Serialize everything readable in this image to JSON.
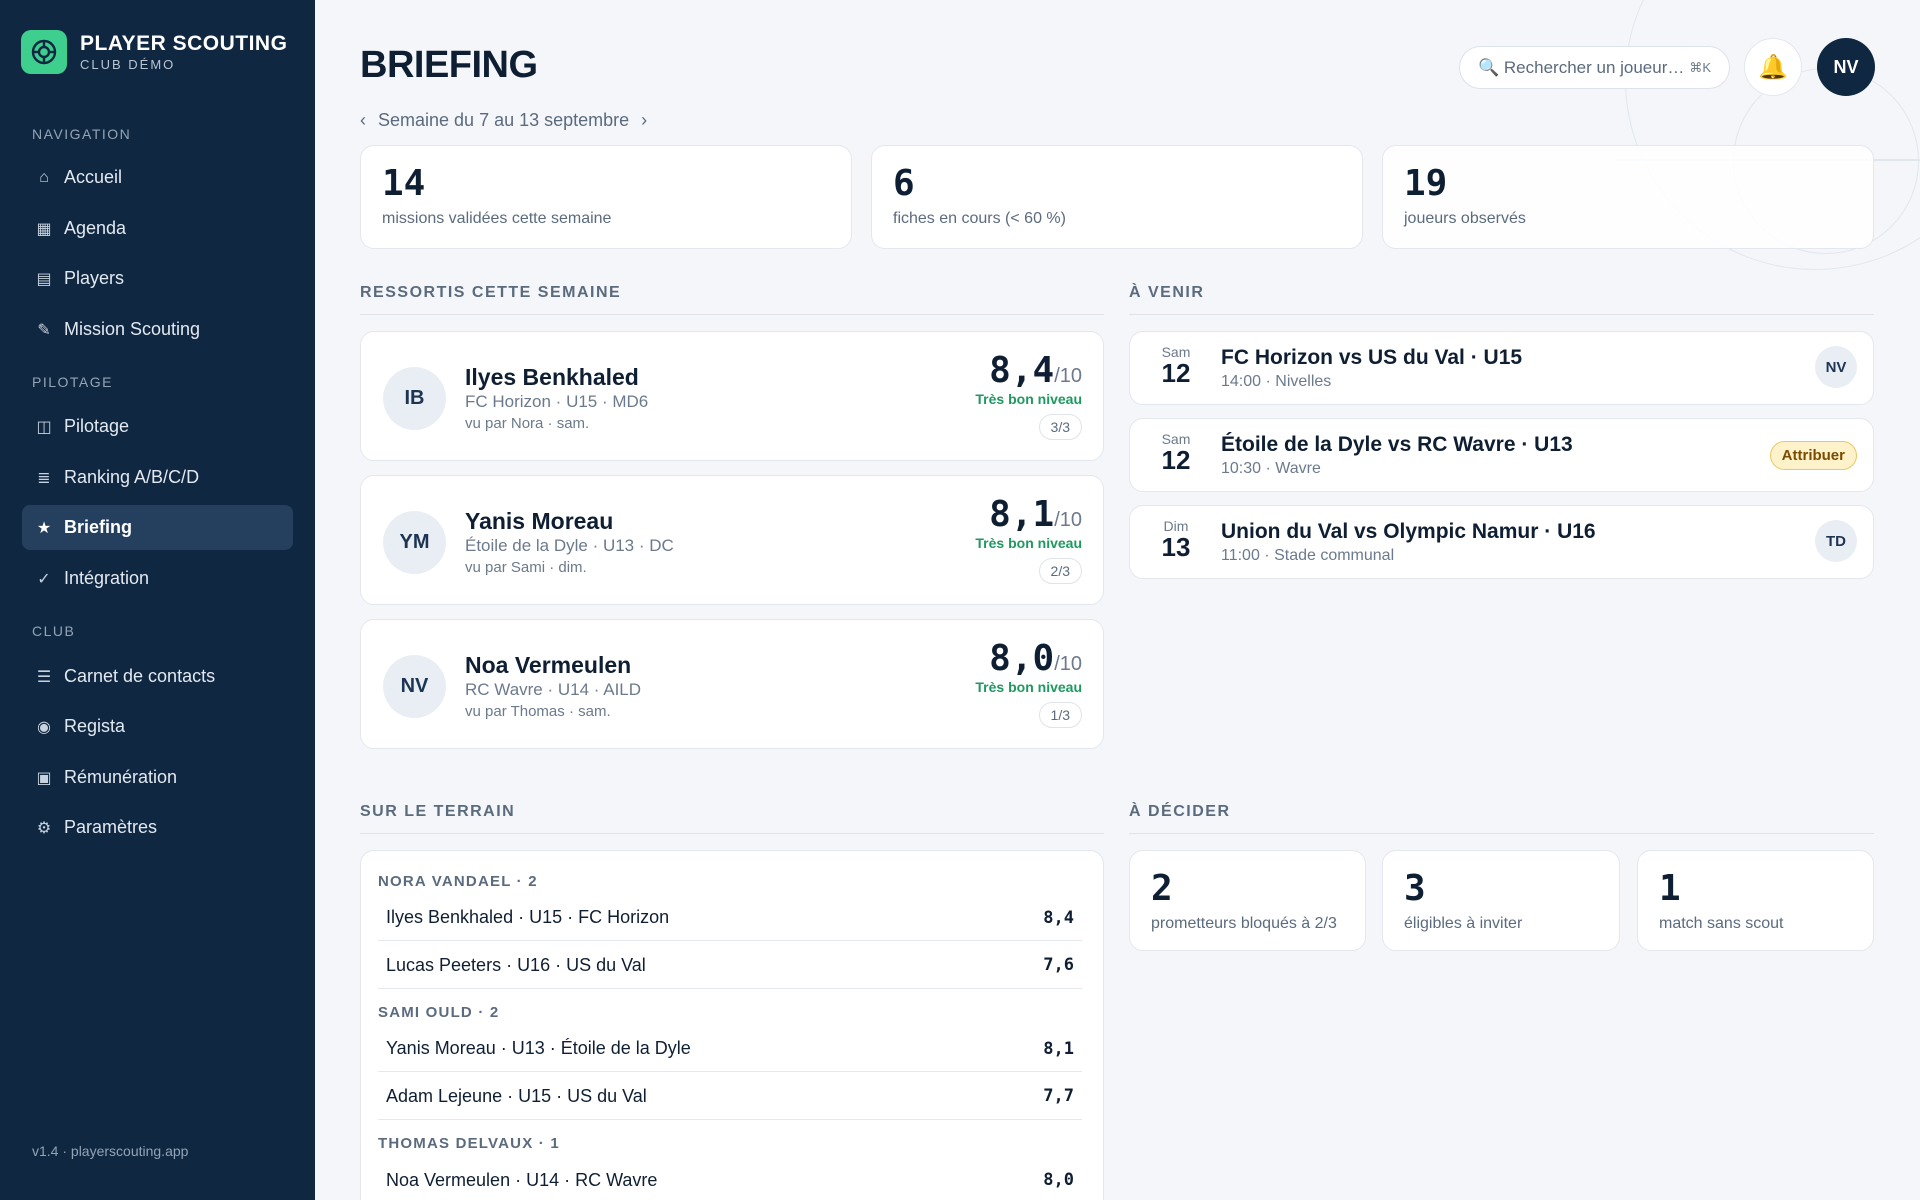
{
  "brand": {
    "title": "PLAYER SCOUTING",
    "subtitle": "CLUB DÉMO"
  },
  "sidebar": {
    "sections": {
      "navigation": "NAVIGATION",
      "pilotage": "PILOTAGE",
      "club": "CLUB"
    },
    "items": [
      {
        "label": "Accueil",
        "icon": "home-icon",
        "glyph": "⌂"
      },
      {
        "label": "Agenda",
        "icon": "calendar-icon",
        "glyph": "▦"
      },
      {
        "label": "Players",
        "icon": "players-icon",
        "glyph": "▤"
      },
      {
        "label": "Mission Scouting",
        "icon": "pencil-icon",
        "glyph": "✎"
      },
      {
        "label": "Pilotage",
        "icon": "dashboard-icon",
        "glyph": "◫"
      },
      {
        "label": "Ranking A/B/C/D",
        "icon": "ranking-icon",
        "glyph": "≣"
      },
      {
        "label": "Briefing",
        "icon": "star-icon",
        "glyph": "★"
      },
      {
        "label": "Intégration",
        "icon": "check-icon",
        "glyph": "✓"
      },
      {
        "label": "Carnet de contacts",
        "icon": "contacts-icon",
        "glyph": "☰"
      },
      {
        "label": "Regista",
        "icon": "regista-icon",
        "glyph": "◉"
      },
      {
        "label": "Rémunération",
        "icon": "payment-icon",
        "glyph": "▣"
      },
      {
        "label": "Paramètres",
        "icon": "gear-icon",
        "glyph": "⚙"
      }
    ],
    "active": "Briefing",
    "version": "v1.4 · playerscouting.app"
  },
  "header": {
    "title": "BRIEFING",
    "week_label": "Semaine du 7 au 13 septembre",
    "prev": "‹",
    "next": "›",
    "search_placeholder": "🔍 Rechercher un joueur…",
    "search_shortcut": "⌘K",
    "bell": "🔔",
    "user_initials": "NV"
  },
  "stats": [
    {
      "value": "14",
      "label": "missions validées cette semaine"
    },
    {
      "value": "6",
      "label": "fiches en cours (< 60 %)"
    },
    {
      "value": "19",
      "label": "joueurs observés"
    }
  ],
  "highlights": {
    "title": "RESSORTIS CETTE SEMAINE",
    "players": [
      {
        "initials": "IB",
        "name": "Ilyes Benkhaled",
        "meta": "FC Horizon · U15 · MD6",
        "seen": "vu par Nora · sam.",
        "score": "8,4",
        "den": "/10",
        "level": "Très bon niveau",
        "count": "3/3"
      },
      {
        "initials": "YM",
        "name": "Yanis Moreau",
        "meta": "Étoile de la Dyle · U13 · DC",
        "seen": "vu par Sami · dim.",
        "score": "8,1",
        "den": "/10",
        "level": "Très bon niveau",
        "count": "2/3"
      },
      {
        "initials": "NV",
        "name": "Noa Vermeulen",
        "meta": "RC Wavre · U14 · AILD",
        "seen": "vu par Thomas · sam.",
        "score": "8,0",
        "den": "/10",
        "level": "Très bon niveau",
        "count": "1/3"
      }
    ]
  },
  "upcoming": {
    "title": "À VENIR",
    "events": [
      {
        "day_name": "Sam",
        "day_num": "12",
        "title": "FC Horizon vs US du Val · U15",
        "sub": "14:00 · Nivelles",
        "badge": "NV",
        "badge_type": "avatar"
      },
      {
        "day_name": "Sam",
        "day_num": "12",
        "title": "Étoile de la Dyle vs RC Wavre · U13",
        "sub": "10:30 · Wavre",
        "badge": "Attribuer",
        "badge_type": "button"
      },
      {
        "day_name": "Dim",
        "day_num": "13",
        "title": "Union du Val vs Olympic Namur · U16",
        "sub": "11:00 · Stade communal",
        "badge": "TD",
        "badge_type": "avatar"
      }
    ]
  },
  "field": {
    "title": "SUR LE TERRAIN",
    "groups": [
      {
        "scout": "NORA VANDAEL · 2",
        "rows": [
          {
            "label": "Ilyes Benkhaled · U15 · FC Horizon",
            "value": "8,4"
          },
          {
            "label": "Lucas Peeters · U16 · US du Val",
            "value": "7,6"
          }
        ]
      },
      {
        "scout": "SAMI OULD · 2",
        "rows": [
          {
            "label": "Yanis Moreau · U13 · Étoile de la Dyle",
            "value": "8,1"
          },
          {
            "label": "Adam Lejeune · U15 · US du Val",
            "value": "7,7"
          }
        ]
      },
      {
        "scout": "THOMAS DELVAUX · 1",
        "rows": [
          {
            "label": "Noa Vermeulen · U14 · RC Wavre",
            "value": "8,0"
          }
        ]
      }
    ]
  },
  "decide": {
    "title": "À DÉCIDER",
    "items": [
      {
        "value": "2",
        "label": "prometteurs bloqués à 2/3"
      },
      {
        "value": "3",
        "label": "éligibles à inviter"
      },
      {
        "value": "1",
        "label": "match sans scout"
      }
    ]
  },
  "colors": {
    "sidebar": "#0f2741",
    "accent": "#3ecf8e",
    "level": "#1e9960",
    "assign_bg": "#fdf2c9"
  }
}
